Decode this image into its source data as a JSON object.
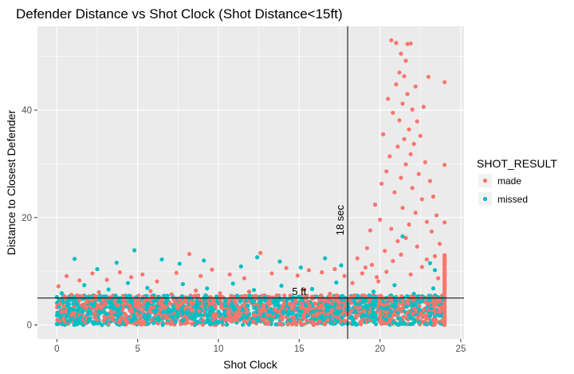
{
  "chart_data": {
    "type": "scatter",
    "title": "Defender Distance vs Shot Clock (Shot Distance<15ft)",
    "xlabel": "Shot Clock",
    "ylabel": "Distance to Closest Defender",
    "xlim": [
      -1.2,
      25.2
    ],
    "ylim": [
      -2.6,
      55.6
    ],
    "x_ticks": [
      0,
      5,
      10,
      15,
      20,
      25
    ],
    "y_ticks": [
      0,
      20,
      40
    ],
    "grid": true,
    "legend": {
      "title": "SHOT_RESULT",
      "position": "right",
      "entries": [
        {
          "label": "made",
          "color": "#F8766D"
        },
        {
          "label": "missed",
          "color": "#00BFC4"
        }
      ]
    },
    "reference_lines": [
      {
        "orientation": "vertical",
        "x": 18,
        "label": "18 sec"
      },
      {
        "orientation": "horizontal",
        "y": 5,
        "label": "5 ft"
      }
    ],
    "series": [
      {
        "name": "made",
        "color": "#F8766D",
        "points": [
          [
            0.1,
            7.2
          ],
          [
            0.6,
            9.1
          ],
          [
            1.4,
            8.3
          ],
          [
            2.2,
            9.6
          ],
          [
            3.1,
            8.4
          ],
          [
            3.9,
            9.8
          ],
          [
            4.6,
            8.9
          ],
          [
            5.3,
            9.4
          ],
          [
            6.2,
            8.1
          ],
          [
            7.4,
            9.7
          ],
          [
            8.2,
            13.2
          ],
          [
            8.9,
            9.1
          ],
          [
            9.6,
            10.3
          ],
          [
            10.7,
            9.4
          ],
          [
            11.6,
            8.7
          ],
          [
            12.6,
            13.4
          ],
          [
            13.3,
            9.6
          ],
          [
            14.2,
            10.6
          ],
          [
            14.9,
            9.2
          ],
          [
            15.6,
            10.2
          ],
          [
            16.4,
            9.8
          ],
          [
            17.2,
            10.4
          ],
          [
            17.8,
            9.1
          ],
          [
            0.9,
            5.6
          ],
          [
            2.6,
            6.1
          ],
          [
            4.1,
            5.4
          ],
          [
            5.8,
            6.3
          ],
          [
            7.1,
            5.7
          ],
          [
            8.6,
            6.4
          ],
          [
            10.1,
            5.9
          ],
          [
            11.9,
            6.2
          ],
          [
            13.6,
            5.5
          ],
          [
            15.3,
            6.6
          ],
          [
            16.9,
            5.8
          ],
          [
            1.8,
            3.1
          ],
          [
            3.4,
            2.4
          ],
          [
            5.1,
            3.6
          ],
          [
            6.7,
            1.8
          ],
          [
            8.3,
            2.9
          ],
          [
            9.8,
            3.4
          ],
          [
            11.2,
            1.5
          ],
          [
            12.9,
            2.7
          ],
          [
            14.4,
            3.9
          ],
          [
            16.1,
            2.2
          ],
          [
            17.5,
            3.3
          ],
          [
            0.4,
            1.2
          ],
          [
            2.9,
            0.8
          ],
          [
            18.3,
            7.8
          ],
          [
            18.6,
            12.4
          ],
          [
            18.9,
            9.6
          ],
          [
            19.2,
            14.3
          ],
          [
            19.4,
            17.6
          ],
          [
            19.5,
            11.2
          ],
          [
            19.7,
            22.4
          ],
          [
            19.8,
            8.9
          ],
          [
            20.0,
            19.6
          ],
          [
            20.1,
            26.3
          ],
          [
            20.2,
            35.5
          ],
          [
            20.3,
            13.8
          ],
          [
            20.4,
            28.6
          ],
          [
            20.5,
            42.1
          ],
          [
            20.6,
            31.4
          ],
          [
            20.7,
            53.0
          ],
          [
            20.7,
            17.9
          ],
          [
            20.8,
            39.5
          ],
          [
            20.9,
            24.7
          ],
          [
            21.0,
            52.5
          ],
          [
            21.0,
            44.8
          ],
          [
            21.1,
            33.2
          ],
          [
            21.1,
            15.6
          ],
          [
            21.2,
            47.0
          ],
          [
            21.2,
            38.1
          ],
          [
            21.3,
            50.5
          ],
          [
            21.3,
            27.4
          ],
          [
            21.4,
            41.2
          ],
          [
            21.4,
            21.8
          ],
          [
            21.5,
            46.3
          ],
          [
            21.5,
            34.6
          ],
          [
            21.6,
            49.2
          ],
          [
            21.6,
            29.9
          ],
          [
            21.7,
            52.3
          ],
          [
            21.7,
            43.0
          ],
          [
            21.8,
            36.4
          ],
          [
            21.8,
            18.7
          ],
          [
            21.9,
            52.4
          ],
          [
            21.9,
            31.8
          ],
          [
            22.0,
            40.1
          ],
          [
            22.0,
            25.5
          ],
          [
            22.1,
            33.7
          ],
          [
            22.2,
            44.4
          ],
          [
            22.2,
            20.9
          ],
          [
            22.3,
            37.9
          ],
          [
            22.4,
            28.1
          ],
          [
            22.5,
            35.2
          ],
          [
            22.6,
            23.4
          ],
          [
            22.7,
            40.6
          ],
          [
            22.8,
            30.3
          ],
          [
            22.9,
            19.2
          ],
          [
            23.0,
            46.2
          ],
          [
            23.1,
            26.8
          ],
          [
            23.2,
            17.4
          ],
          [
            23.3,
            23.9
          ],
          [
            23.4,
            12.8
          ],
          [
            23.5,
            20.4
          ],
          [
            23.7,
            15.1
          ],
          [
            24.0,
            45.2
          ],
          [
            24.0,
            29.8
          ],
          [
            24.0,
            19.1
          ],
          [
            24.0,
            13.0
          ],
          [
            24.0,
            11.4
          ],
          [
            24.0,
            9.7
          ],
          [
            24.0,
            8.2
          ],
          [
            24.0,
            6.9
          ],
          [
            22.6,
            10.8
          ],
          [
            21.9,
            9.4
          ],
          [
            20.8,
            11.9
          ],
          [
            19.9,
            8.1
          ],
          [
            21.3,
            13.1
          ],
          [
            22.9,
            12.2
          ],
          [
            20.4,
            9.9
          ],
          [
            23.6,
            8.7
          ],
          [
            19.1,
            10.7
          ],
          [
            22.3,
            14.6
          ],
          [
            21.6,
            16.2
          ]
        ]
      },
      {
        "name": "missed",
        "color": "#00BFC4",
        "points": [
          [
            1.1,
            12.3
          ],
          [
            2.5,
            10.4
          ],
          [
            3.7,
            11.6
          ],
          [
            4.8,
            13.9
          ],
          [
            6.5,
            12.2
          ],
          [
            7.6,
            11.4
          ],
          [
            9.1,
            12.0
          ],
          [
            11.4,
            10.9
          ],
          [
            12.4,
            12.6
          ],
          [
            13.8,
            11.8
          ],
          [
            15.1,
            10.7
          ],
          [
            16.6,
            12.4
          ],
          [
            17.6,
            11.1
          ],
          [
            23.1,
            11.5
          ],
          [
            23.4,
            10.2
          ],
          [
            21.4,
            16.5
          ],
          [
            0.3,
            5.9
          ],
          [
            1.7,
            7.4
          ],
          [
            3.2,
            6.6
          ],
          [
            4.4,
            7.8
          ],
          [
            5.6,
            6.9
          ],
          [
            7.8,
            7.6
          ],
          [
            9.3,
            6.8
          ],
          [
            10.9,
            7.7
          ],
          [
            12.2,
            6.5
          ],
          [
            13.9,
            7.3
          ],
          [
            15.8,
            6.7
          ],
          [
            17.3,
            7.9
          ],
          [
            0.7,
            3.8
          ],
          [
            2.1,
            2.1
          ],
          [
            3.8,
            4.4
          ],
          [
            5.4,
            1.9
          ],
          [
            7.2,
            3.5
          ],
          [
            8.8,
            4.1
          ],
          [
            10.4,
            2.6
          ],
          [
            12.1,
            4.3
          ],
          [
            13.7,
            1.7
          ],
          [
            15.4,
            3.7
          ],
          [
            16.8,
            2.8
          ],
          [
            18.4,
            4.6
          ],
          [
            19.6,
            6.2
          ],
          [
            20.9,
            7.4
          ],
          [
            22.1,
            5.8
          ],
          [
            23.3,
            6.8
          ],
          [
            23.9,
            4.9
          ]
        ]
      }
    ],
    "dense_band": {
      "x_range": [
        0,
        24
      ],
      "y_range": [
        0,
        5.5
      ],
      "note_series": [
        "made",
        "missed"
      ]
    }
  }
}
